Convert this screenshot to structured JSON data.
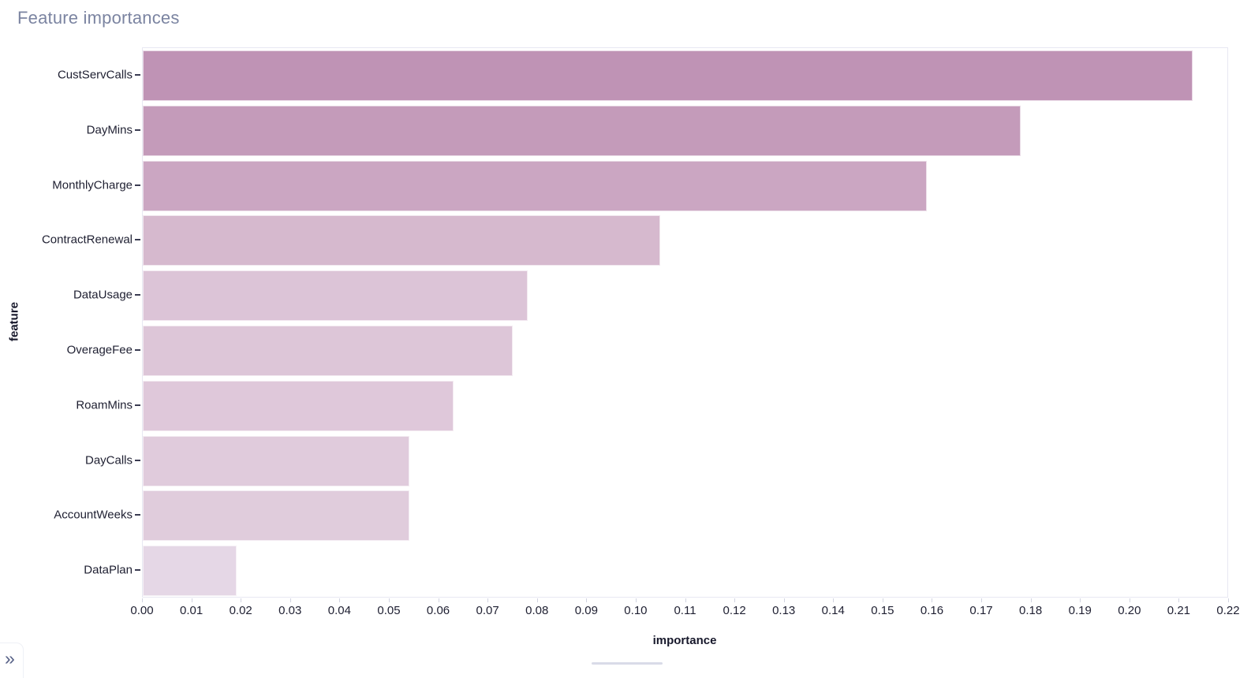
{
  "header": {
    "title": "Feature importances",
    "title_color": "#7b84a1"
  },
  "sidebar_expander": {
    "icon": "double-chevron-right",
    "glyph": "»",
    "color": "#566086"
  },
  "chart_data": {
    "type": "bar",
    "orientation": "horizontal",
    "title": "Feature importances",
    "xlabel": "importance",
    "ylabel": "feature",
    "categories": [
      "CustServCalls",
      "DayMins",
      "MonthlyCharge",
      "ContractRenewal",
      "DataUsage",
      "OverageFee",
      "RoamMins",
      "DayCalls",
      "AccountWeeks",
      "DataPlan"
    ],
    "values": [
      0.213,
      0.178,
      0.159,
      0.105,
      0.078,
      0.075,
      0.063,
      0.054,
      0.054,
      0.019
    ],
    "bar_colors": [
      "#bf93b5",
      "#c49bba",
      "#cba6c2",
      "#d6b9ce",
      "#dcc4d7",
      "#ddc6d8",
      "#dfc8da",
      "#e0cbdc",
      "#e0ccdc",
      "#e5d7e6"
    ],
    "xlim": [
      0,
      0.22
    ],
    "x_tick_labels": [
      "0.00",
      "0.01",
      "0.02",
      "0.03",
      "0.04",
      "0.05",
      "0.06",
      "0.07",
      "0.08",
      "0.09",
      "0.10",
      "0.11",
      "0.12",
      "0.13",
      "0.14",
      "0.15",
      "0.16",
      "0.17",
      "0.18",
      "0.19",
      "0.20",
      "0.21",
      "0.22"
    ],
    "grid": false,
    "legend_position": "none",
    "text_color": "#1e1f31",
    "plot_border_color": "#e8e8f2"
  }
}
